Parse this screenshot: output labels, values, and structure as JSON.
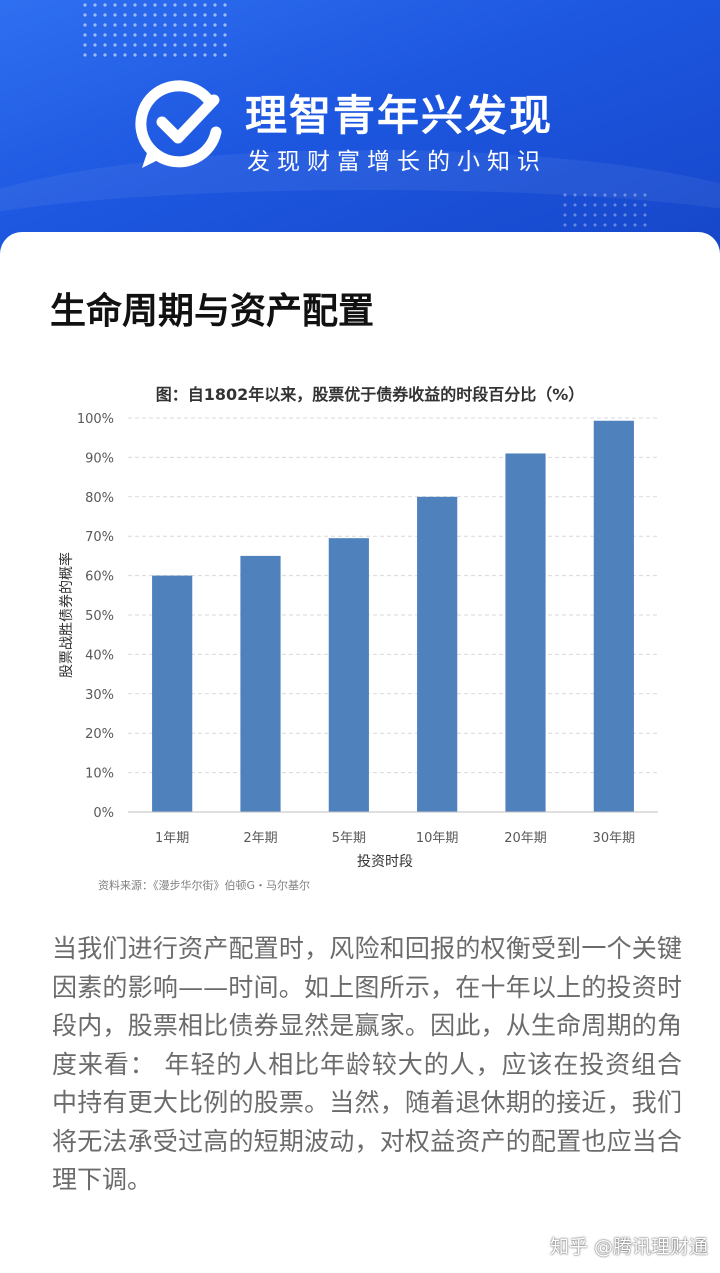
{
  "header": {
    "title": "理智青年兴发现",
    "subtitle": "发现财富增长的小知识"
  },
  "page_title": "生命周期与资产配置",
  "chart_data": {
    "type": "bar",
    "title": "图：自1802年以来，股票优于债券收益的时段百分比（%）",
    "xlabel": "投资时段",
    "ylabel": "股票战胜债券的概率",
    "categories": [
      "1年期",
      "2年期",
      "5年期",
      "10年期",
      "20年期",
      "30年期"
    ],
    "values": [
      60,
      65,
      69.5,
      80,
      91,
      99.3
    ],
    "ylim": [
      0,
      100
    ],
    "yticks": [
      "0%",
      "10%",
      "20%",
      "30%",
      "40%",
      "50%",
      "60%",
      "70%",
      "80%",
      "90%",
      "100%"
    ],
    "grid": true,
    "bar_color": "#4f81bd",
    "source": "资料来源：《漫步华尔街》伯顿G・马尔基尔"
  },
  "article": {
    "text": "当我们进行资产配置时，风险和回报的权衡受到一个关键因素的影响——时间。如上图所示，在十年以上的投资时段内，股票相比债券显然是赢家。因此，从生命周期的角度来看： 年轻的人相比年龄较大的人，应该在投资组合中持有更大比例的股票。当然，随着退休期的接近，我们将无法承受过高的短期波动，对权益资产的配置也应当合理下调。"
  },
  "watermark": "知乎 @腾讯理财通",
  "colors": {
    "banner": "#1d57e0",
    "bar": "#4f81bd",
    "article_text": "#6b6b6b"
  }
}
